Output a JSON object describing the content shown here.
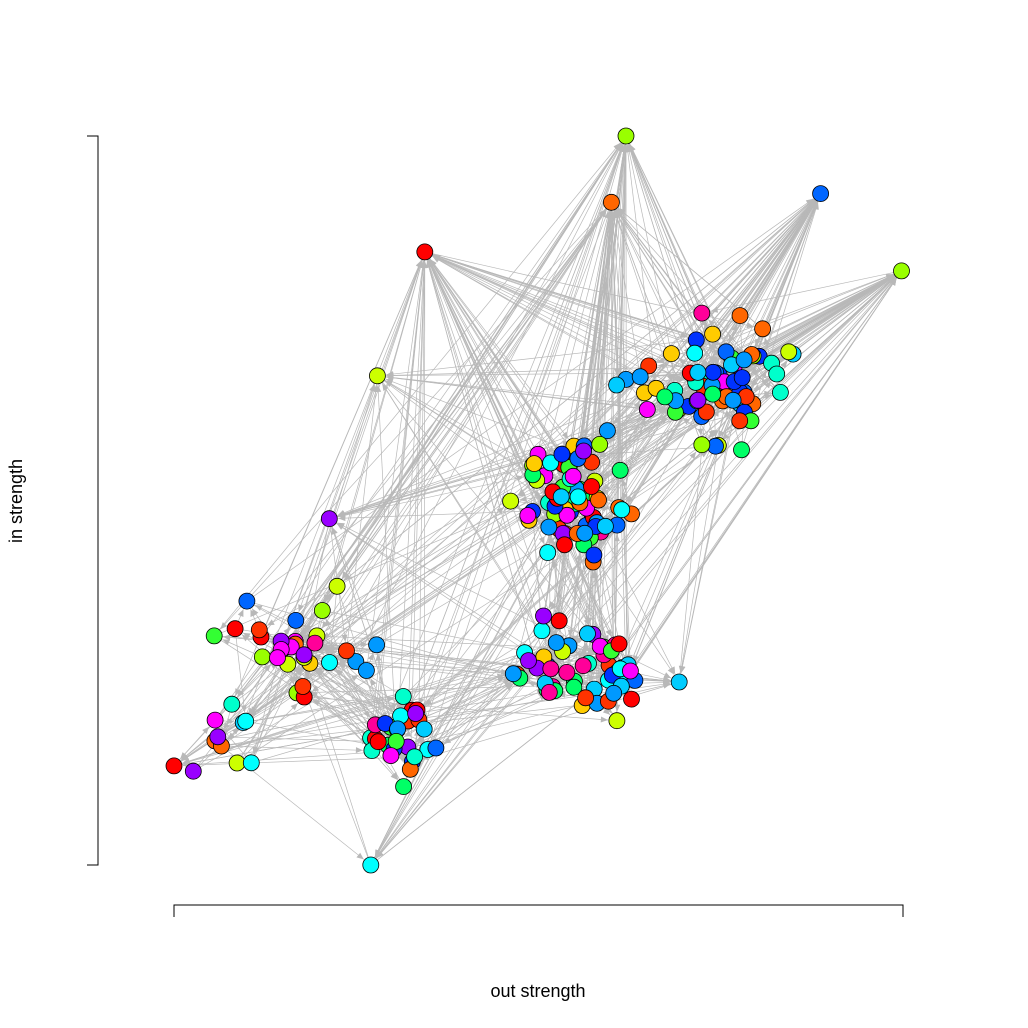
{
  "chart_data": {
    "type": "scatter",
    "title": "",
    "xlabel": "out strength",
    "ylabel": "in strength",
    "x_ticks": false,
    "y_ticks": false,
    "grid": false,
    "legend": "none",
    "colors": {
      "edge": "#b8b8b8",
      "node_border": "#000000",
      "axis": "#000000"
    },
    "hubs": [
      {
        "x": 0.62,
        "y": 1.0,
        "color": "#99ff00"
      },
      {
        "x": 0.998,
        "y": 0.815,
        "color": "#99ff00"
      },
      {
        "x": 0.887,
        "y": 0.921,
        "color": "#0066ff"
      },
      {
        "x": 0.6,
        "y": 0.909,
        "color": "#ff6600"
      },
      {
        "x": 0.344,
        "y": 0.841,
        "color": "#ff0000"
      },
      {
        "x": 0.279,
        "y": 0.671,
        "color": "#ccff00"
      },
      {
        "x": 0.213,
        "y": 0.475,
        "color": "#9900ff"
      },
      {
        "x": 0.0,
        "y": 0.136,
        "color": "#ff0000"
      },
      {
        "x": 0.693,
        "y": 0.251,
        "color": "#00ccff"
      },
      {
        "x": 0.27,
        "y": 0.0,
        "color": "#00ffff"
      }
    ],
    "clusters": [
      {
        "cx": 0.74,
        "cy": 0.66,
        "sx": 0.1,
        "sy": 0.085,
        "n": 70
      },
      {
        "cx": 0.55,
        "cy": 0.5,
        "sx": 0.07,
        "sy": 0.085,
        "n": 75
      },
      {
        "cx": 0.55,
        "cy": 0.27,
        "sx": 0.09,
        "sy": 0.075,
        "n": 55
      },
      {
        "cx": 0.31,
        "cy": 0.17,
        "sx": 0.065,
        "sy": 0.06,
        "n": 28
      },
      {
        "cx": 0.17,
        "cy": 0.3,
        "sx": 0.1,
        "sy": 0.07,
        "n": 30
      },
      {
        "cx": 0.07,
        "cy": 0.17,
        "sx": 0.05,
        "sy": 0.045,
        "n": 10
      }
    ],
    "palette": [
      "#ff0000",
      "#ff3300",
      "#ff6600",
      "#ffcc00",
      "#ccff00",
      "#99ff00",
      "#33ff33",
      "#00ff66",
      "#00ffcc",
      "#00ffff",
      "#00ccff",
      "#0099ff",
      "#0066ff",
      "#0033ff",
      "#9900ff",
      "#ff00ff",
      "#ff0099"
    ]
  }
}
